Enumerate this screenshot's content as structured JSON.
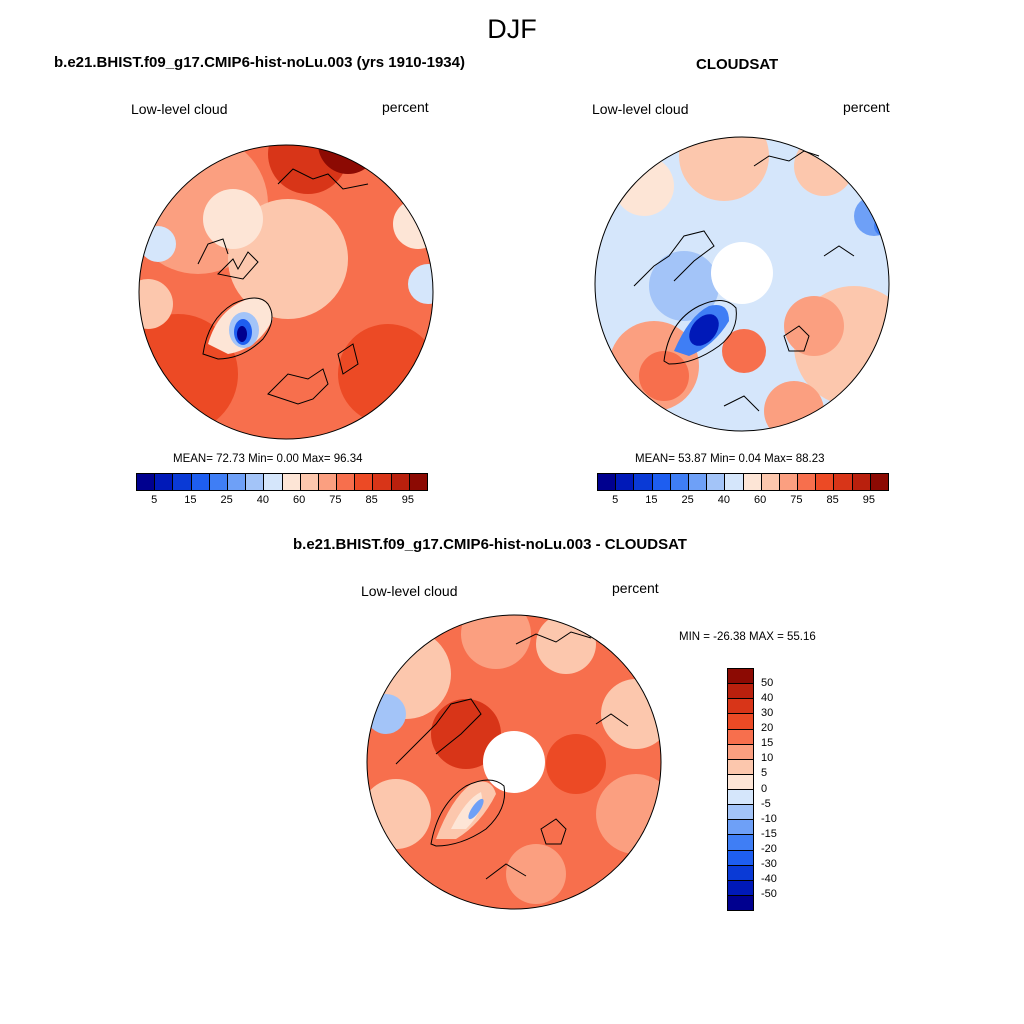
{
  "figure": {
    "title": "DJF"
  },
  "panels": {
    "model": {
      "title": "b.e21.BHIST.f09_g17.CMIP6-hist-noLu.003 (yrs 1910-1934)",
      "left_label": "Low-level cloud",
      "right_label": "percent",
      "stats": "MEAN=  72.73  Min=   0.00  Max=  96.34",
      "mean": 72.73,
      "min": 0.0,
      "max": 96.34
    },
    "obs": {
      "title": "CLOUDSAT",
      "left_label": "Low-level cloud",
      "right_label": "percent",
      "stats": "MEAN=  53.87  Min=   0.04  Max=  88.23",
      "mean": 53.87,
      "min": 0.04,
      "max": 88.23
    },
    "diff": {
      "title": "b.e21.BHIST.f09_g17.CMIP6-hist-noLu.003 - CLOUDSAT",
      "left_label": "Low-level cloud",
      "right_label": "percent",
      "stats": "MIN = -26.38 MAX =  55.16",
      "min": -26.38,
      "max": 55.16
    }
  },
  "colorbars": {
    "abs": {
      "colors": [
        "#00008f",
        "#0019b8",
        "#0a3ad6",
        "#1e5ef0",
        "#3f7ef5",
        "#6ea0f7",
        "#a3c4f8",
        "#d5e6fb",
        "#fde5d6",
        "#fcc7ad",
        "#fb9f80",
        "#f76f4d",
        "#ec4a25",
        "#d83518",
        "#b9200d",
        "#8c0a03"
      ],
      "ticks": [
        "5",
        "15",
        "25",
        "40",
        "60",
        "75",
        "85",
        "95"
      ]
    },
    "diff": {
      "colors": [
        "#8c0a03",
        "#b9200d",
        "#d83518",
        "#ec4a25",
        "#f76f4d",
        "#fb9f80",
        "#fcc7ad",
        "#fde5d6",
        "#d5e6fb",
        "#a3c4f8",
        "#6ea0f7",
        "#3f7ef5",
        "#1e5ef0",
        "#0a3ad6",
        "#0019b8",
        "#00008f"
      ],
      "ticks": [
        "50",
        "40",
        "30",
        "20",
        "15",
        "10",
        "5",
        "0",
        "-5",
        "-10",
        "-15",
        "-20",
        "-30",
        "-40",
        "-50"
      ]
    }
  }
}
